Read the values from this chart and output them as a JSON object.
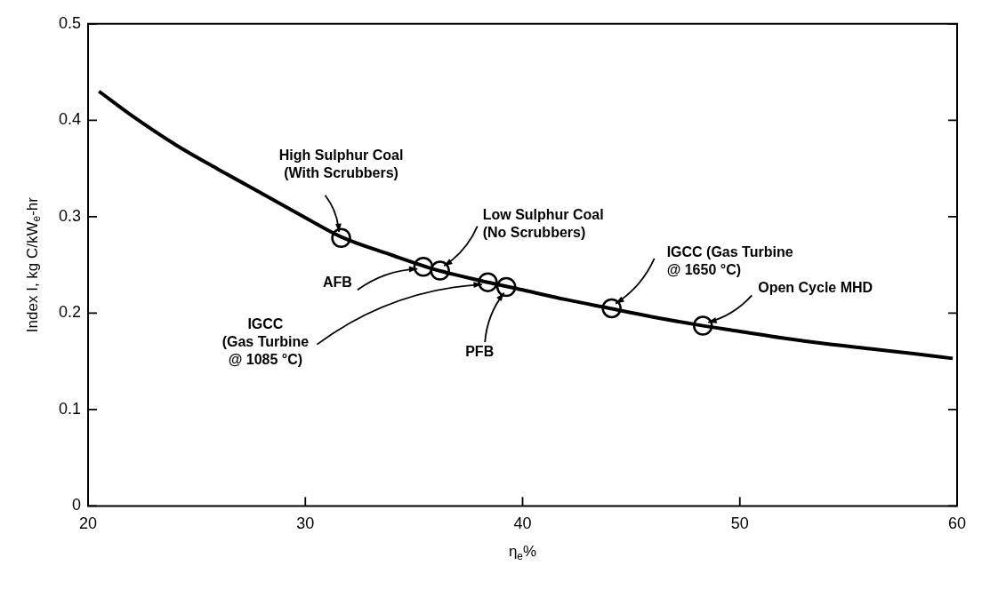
{
  "chart_data": {
    "type": "line",
    "xlabel": "η$_{e}$%",
    "ylabel": "Index I, kg C/kW$_{e}$-hr",
    "xlim": [
      20,
      60
    ],
    "xticks": [
      20,
      30,
      40,
      50,
      60
    ],
    "ylim": [
      0,
      0.5
    ],
    "yticks": [
      0,
      0.1,
      0.2,
      0.3,
      0.4,
      0.5
    ],
    "grid": false,
    "legend": false,
    "series": [
      {
        "color": "#000000",
        "marker": "none",
        "line_style": "solid",
        "x": [
          20.5,
          22,
          24,
          26,
          28,
          30,
          31.65,
          34,
          36,
          38,
          40,
          42,
          44,
          46,
          48,
          50,
          52,
          54,
          56,
          58,
          59.8
        ],
        "values": [
          0.43,
          0.405,
          0.375,
          0.349,
          0.324,
          0.299,
          0.279,
          0.26,
          0.245,
          0.234,
          0.224,
          0.214,
          0.205,
          0.196,
          0.188,
          0.181,
          0.174,
          0.168,
          0.163,
          0.158,
          0.153
        ]
      },
      {
        "type": "scatter",
        "color": "#000000",
        "marker": "circle",
        "x": [
          31.65,
          36.2,
          35.43,
          38.4,
          39.25,
          44.1,
          48.3
        ],
        "values": [
          0.278,
          0.244,
          0.248,
          0.232,
          0.227,
          0.205,
          0.187
        ]
      }
    ],
    "annotations": [
      {
        "text": "High Sulphur Coal\n(With Scrubbers)",
        "x": 31.65,
        "y": 0.278
      },
      {
        "text": "Low Sulphur Coal\n(No Scrubbers)",
        "x": 36.2,
        "y": 0.244
      },
      {
        "text": "AFB",
        "x": 35.43,
        "y": 0.248
      },
      {
        "text": "IGCC\n(Gas Turbine\n@ 1085 °C)",
        "x": 38.4,
        "y": 0.232
      },
      {
        "text": "PFB",
        "x": 39.25,
        "y": 0.227
      },
      {
        "text": "IGCC (Gas Turbine\n@ 1650 °C)",
        "x": 44.1,
        "y": 0.205
      },
      {
        "text": "Open Cycle MHD",
        "x": 48.3,
        "y": 0.187
      }
    ]
  }
}
